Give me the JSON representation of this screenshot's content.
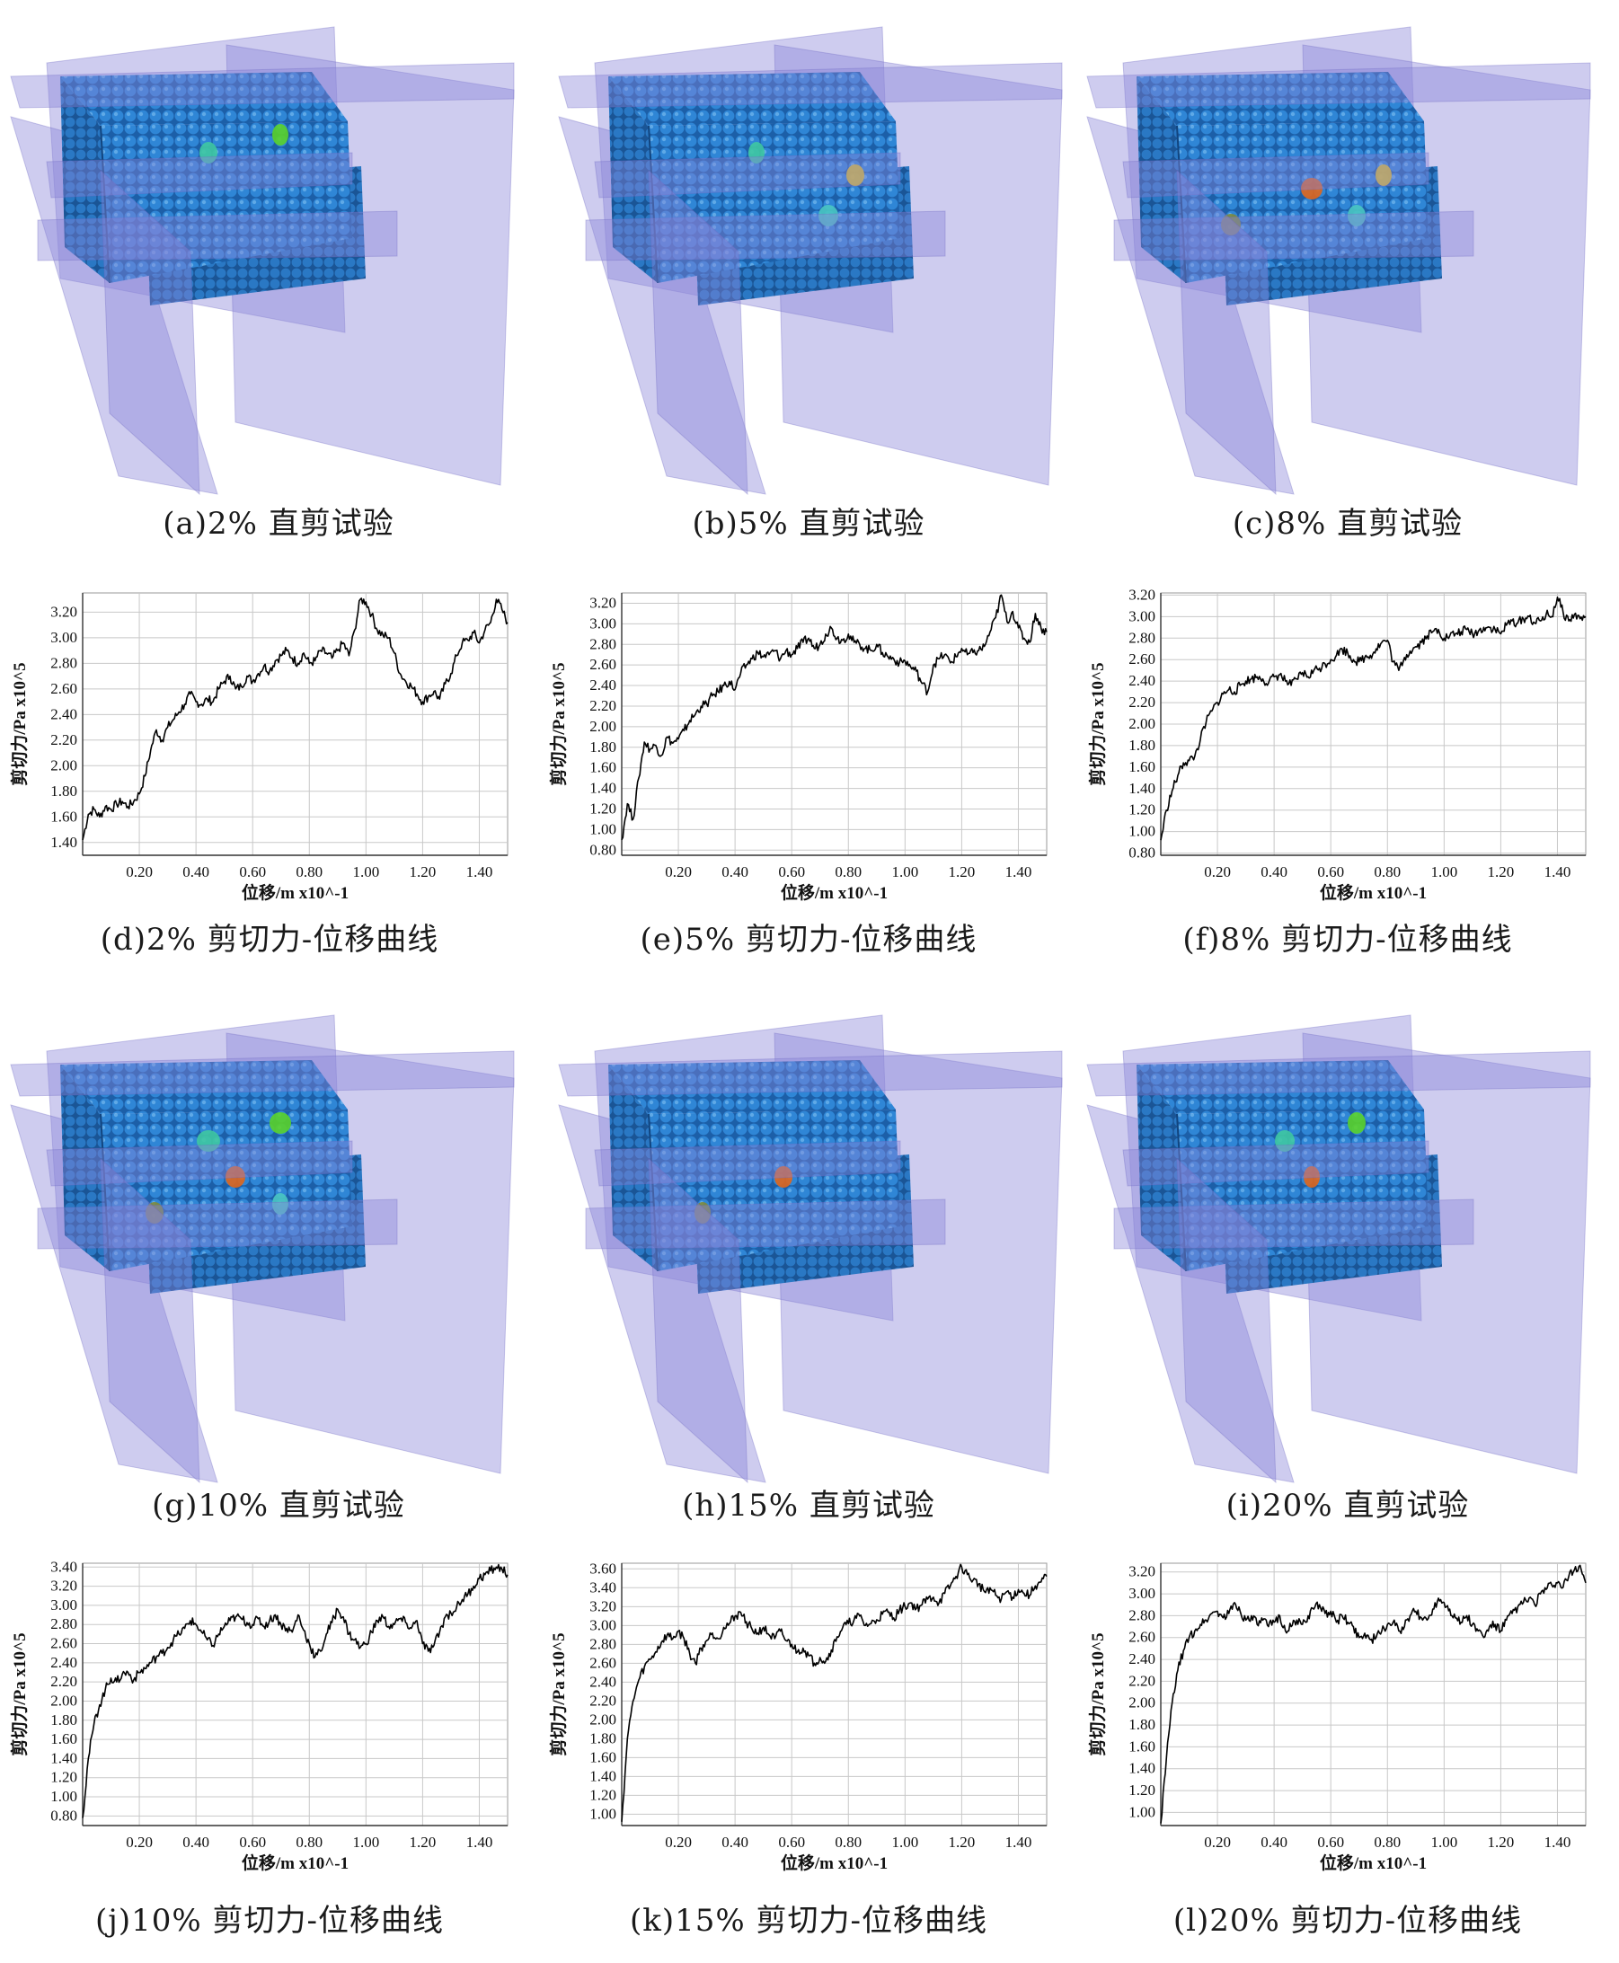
{
  "captions": {
    "a": "(a)2% 直剪试验",
    "b": "(b)5% 直剪试验",
    "c": "(c)8% 直剪试验",
    "d": "(d)2% 剪切力-位移曲线",
    "e": "(e)5% 剪切力-位移曲线",
    "f": "(f)8% 剪切力-位移曲线",
    "g": "(g)10% 直剪试验",
    "h": "(h)15% 直剪试验",
    "i": "(i)20% 直剪试验",
    "j": "(j)10% 剪切力-位移曲线",
    "k": "(k)15% 剪切力-位移曲线",
    "l": "(l)20% 剪切力-位移曲线"
  },
  "colors": {
    "plane": "#8a86d8",
    "particle_blue": "#2f86d6",
    "particle_dark": "#1c5fa8",
    "curve": "#000000",
    "grid": "#c8c8c8"
  },
  "chart_data": [
    {
      "id": "d",
      "type": "line",
      "xlabel": "位移/m x10^-1",
      "ylabel": "剪切力/Pa x10^5",
      "xlim": [
        0,
        1.5
      ],
      "ylim": [
        1.3,
        3.35
      ],
      "xticks": [
        "0.20",
        "0.40",
        "0.60",
        "0.80",
        "1.00",
        "1.20",
        "1.40"
      ],
      "yticks": [
        "1.40",
        "1.60",
        "1.80",
        "2.00",
        "2.20",
        "2.40",
        "2.60",
        "2.80",
        "3.00",
        "3.20"
      ],
      "grid": true,
      "x": [
        0,
        0.02,
        0.04,
        0.06,
        0.08,
        0.1,
        0.12,
        0.14,
        0.16,
        0.18,
        0.2,
        0.22,
        0.24,
        0.26,
        0.28,
        0.3,
        0.32,
        0.34,
        0.36,
        0.38,
        0.4,
        0.42,
        0.44,
        0.46,
        0.48,
        0.5,
        0.52,
        0.54,
        0.56,
        0.58,
        0.6,
        0.62,
        0.64,
        0.66,
        0.68,
        0.7,
        0.72,
        0.74,
        0.76,
        0.78,
        0.8,
        0.82,
        0.84,
        0.86,
        0.88,
        0.9,
        0.92,
        0.94,
        0.96,
        0.98,
        1.0,
        1.02,
        1.04,
        1.06,
        1.08,
        1.1,
        1.12,
        1.14,
        1.16,
        1.18,
        1.2,
        1.22,
        1.24,
        1.26,
        1.28,
        1.3,
        1.32,
        1.34,
        1.36,
        1.38,
        1.4,
        1.42,
        1.44,
        1.46,
        1.48,
        1.5
      ],
      "y": [
        1.42,
        1.62,
        1.66,
        1.6,
        1.68,
        1.66,
        1.7,
        1.72,
        1.68,
        1.72,
        1.78,
        1.92,
        2.12,
        2.28,
        2.2,
        2.3,
        2.36,
        2.42,
        2.48,
        2.56,
        2.5,
        2.48,
        2.52,
        2.5,
        2.6,
        2.66,
        2.7,
        2.6,
        2.62,
        2.7,
        2.66,
        2.72,
        2.78,
        2.74,
        2.82,
        2.86,
        2.9,
        2.84,
        2.8,
        2.88,
        2.8,
        2.82,
        2.9,
        2.88,
        2.84,
        2.9,
        2.96,
        2.86,
        3.06,
        3.3,
        3.28,
        3.18,
        3.06,
        3.02,
        3.0,
        2.88,
        2.72,
        2.66,
        2.62,
        2.56,
        2.5,
        2.54,
        2.58,
        2.52,
        2.64,
        2.72,
        2.86,
        2.96,
        2.98,
        3.04,
        2.96,
        3.06,
        3.12,
        3.3,
        3.22,
        3.12
      ]
    },
    {
      "id": "e",
      "type": "line",
      "xlabel": "位移/m x10^-1",
      "ylabel": "剪切力/Pa x10^5",
      "xlim": [
        0,
        1.5
      ],
      "ylim": [
        0.75,
        3.3
      ],
      "xticks": [
        "0.20",
        "0.40",
        "0.60",
        "0.80",
        "1.00",
        "1.20",
        "1.40"
      ],
      "yticks": [
        "0.80",
        "1.00",
        "1.20",
        "1.40",
        "1.60",
        "1.80",
        "2.00",
        "2.20",
        "2.40",
        "2.60",
        "2.80",
        "3.00",
        "3.20"
      ],
      "grid": true,
      "x": [
        0,
        0.02,
        0.04,
        0.06,
        0.08,
        0.1,
        0.12,
        0.14,
        0.16,
        0.18,
        0.2,
        0.22,
        0.24,
        0.26,
        0.28,
        0.3,
        0.32,
        0.34,
        0.36,
        0.38,
        0.4,
        0.42,
        0.44,
        0.46,
        0.48,
        0.5,
        0.52,
        0.54,
        0.56,
        0.58,
        0.6,
        0.62,
        0.64,
        0.66,
        0.68,
        0.7,
        0.72,
        0.74,
        0.76,
        0.78,
        0.8,
        0.82,
        0.84,
        0.86,
        0.88,
        0.9,
        0.92,
        0.94,
        0.96,
        0.98,
        1.0,
        1.02,
        1.04,
        1.06,
        1.08,
        1.1,
        1.12,
        1.14,
        1.16,
        1.18,
        1.2,
        1.22,
        1.24,
        1.26,
        1.28,
        1.3,
        1.32,
        1.34,
        1.36,
        1.38,
        1.4,
        1.42,
        1.44,
        1.46,
        1.48,
        1.5
      ],
      "y": [
        0.9,
        1.25,
        1.1,
        1.5,
        1.85,
        1.78,
        1.82,
        1.72,
        1.9,
        1.84,
        1.88,
        1.96,
        2.06,
        2.12,
        2.2,
        2.22,
        2.3,
        2.34,
        2.4,
        2.44,
        2.36,
        2.52,
        2.6,
        2.66,
        2.72,
        2.68,
        2.7,
        2.74,
        2.66,
        2.74,
        2.7,
        2.76,
        2.82,
        2.86,
        2.76,
        2.8,
        2.9,
        2.96,
        2.86,
        2.84,
        2.9,
        2.82,
        2.8,
        2.76,
        2.74,
        2.8,
        2.72,
        2.68,
        2.66,
        2.62,
        2.64,
        2.58,
        2.54,
        2.42,
        2.34,
        2.6,
        2.66,
        2.7,
        2.62,
        2.68,
        2.76,
        2.7,
        2.72,
        2.74,
        2.78,
        2.92,
        3.06,
        3.28,
        3.02,
        3.12,
        2.96,
        2.86,
        2.82,
        3.1,
        2.96,
        2.92
      ]
    },
    {
      "id": "f",
      "type": "line",
      "xlabel": "位移/m x10^-1",
      "ylabel": "剪切力/Pa x10^5",
      "xlim": [
        0,
        1.5
      ],
      "ylim": [
        0.78,
        3.22
      ],
      "xticks": [
        "0.20",
        "0.40",
        "0.60",
        "0.80",
        "1.00",
        "1.20",
        "1.40"
      ],
      "yticks": [
        "0.80",
        "1.00",
        "1.20",
        "1.40",
        "1.60",
        "1.80",
        "2.00",
        "2.20",
        "2.40",
        "2.60",
        "2.80",
        "3.00",
        "3.20"
      ],
      "grid": true,
      "x": [
        0,
        0.02,
        0.04,
        0.06,
        0.08,
        0.1,
        0.12,
        0.14,
        0.16,
        0.18,
        0.2,
        0.22,
        0.24,
        0.26,
        0.28,
        0.3,
        0.32,
        0.34,
        0.36,
        0.38,
        0.4,
        0.42,
        0.44,
        0.46,
        0.48,
        0.5,
        0.52,
        0.54,
        0.56,
        0.58,
        0.6,
        0.62,
        0.64,
        0.66,
        0.68,
        0.7,
        0.72,
        0.74,
        0.76,
        0.78,
        0.8,
        0.82,
        0.84,
        0.86,
        0.88,
        0.9,
        0.92,
        0.94,
        0.96,
        0.98,
        1.0,
        1.02,
        1.04,
        1.06,
        1.08,
        1.1,
        1.12,
        1.14,
        1.16,
        1.18,
        1.2,
        1.22,
        1.24,
        1.26,
        1.28,
        1.3,
        1.32,
        1.34,
        1.36,
        1.38,
        1.4,
        1.42,
        1.44,
        1.46,
        1.48,
        1.5
      ],
      "y": [
        0.92,
        1.2,
        1.38,
        1.52,
        1.64,
        1.66,
        1.7,
        1.86,
        2.02,
        2.12,
        2.2,
        2.28,
        2.32,
        2.3,
        2.36,
        2.4,
        2.42,
        2.44,
        2.42,
        2.38,
        2.44,
        2.46,
        2.4,
        2.36,
        2.42,
        2.48,
        2.44,
        2.5,
        2.52,
        2.56,
        2.6,
        2.64,
        2.7,
        2.66,
        2.6,
        2.58,
        2.62,
        2.64,
        2.7,
        2.76,
        2.78,
        2.58,
        2.5,
        2.62,
        2.68,
        2.72,
        2.76,
        2.82,
        2.86,
        2.88,
        2.8,
        2.82,
        2.84,
        2.86,
        2.88,
        2.84,
        2.86,
        2.9,
        2.9,
        2.88,
        2.84,
        2.92,
        2.96,
        2.94,
        2.98,
        3.0,
        2.94,
        2.96,
        3.02,
        3.0,
        3.18,
        3.04,
        2.96,
        3.02,
        2.98,
        3.0
      ]
    },
    {
      "id": "j",
      "type": "line",
      "xlabel": "位移/m x10^-1",
      "ylabel": "剪切力/Pa x10^5",
      "xlim": [
        0,
        1.5
      ],
      "ylim": [
        0.7,
        3.44
      ],
      "xticks": [
        "0.20",
        "0.40",
        "0.60",
        "0.80",
        "1.00",
        "1.20",
        "1.40"
      ],
      "yticks": [
        "0.80",
        "1.00",
        "1.20",
        "1.40",
        "1.60",
        "1.80",
        "2.00",
        "2.20",
        "2.40",
        "2.60",
        "2.80",
        "3.00",
        "3.20",
        "3.40"
      ],
      "grid": true,
      "x": [
        0,
        0.02,
        0.04,
        0.06,
        0.08,
        0.1,
        0.12,
        0.14,
        0.16,
        0.18,
        0.2,
        0.22,
        0.24,
        0.26,
        0.28,
        0.3,
        0.32,
        0.34,
        0.36,
        0.38,
        0.4,
        0.42,
        0.44,
        0.46,
        0.48,
        0.5,
        0.52,
        0.54,
        0.56,
        0.58,
        0.6,
        0.62,
        0.64,
        0.66,
        0.68,
        0.7,
        0.72,
        0.74,
        0.76,
        0.78,
        0.8,
        0.82,
        0.84,
        0.86,
        0.88,
        0.9,
        0.92,
        0.94,
        0.96,
        0.98,
        1.0,
        1.02,
        1.04,
        1.06,
        1.08,
        1.1,
        1.12,
        1.14,
        1.16,
        1.18,
        1.2,
        1.22,
        1.24,
        1.26,
        1.28,
        1.3,
        1.32,
        1.34,
        1.36,
        1.38,
        1.4,
        1.42,
        1.44,
        1.46,
        1.48,
        1.5
      ],
      "y": [
        0.78,
        1.4,
        1.76,
        1.96,
        2.12,
        2.24,
        2.2,
        2.28,
        2.3,
        2.22,
        2.3,
        2.34,
        2.4,
        2.46,
        2.5,
        2.56,
        2.64,
        2.7,
        2.76,
        2.84,
        2.8,
        2.72,
        2.64,
        2.58,
        2.7,
        2.78,
        2.84,
        2.88,
        2.86,
        2.82,
        2.8,
        2.86,
        2.78,
        2.84,
        2.9,
        2.8,
        2.76,
        2.72,
        2.9,
        2.74,
        2.6,
        2.46,
        2.52,
        2.7,
        2.82,
        2.96,
        2.88,
        2.7,
        2.64,
        2.56,
        2.6,
        2.72,
        2.84,
        2.88,
        2.78,
        2.8,
        2.86,
        2.82,
        2.76,
        2.84,
        2.6,
        2.52,
        2.58,
        2.72,
        2.88,
        2.92,
        2.98,
        3.06,
        3.12,
        3.2,
        3.28,
        3.32,
        3.36,
        3.4,
        3.38,
        3.32
      ]
    },
    {
      "id": "k",
      "type": "line",
      "xlabel": "位移/m x10^-1",
      "ylabel": "剪切力/Pa x10^5",
      "xlim": [
        0,
        1.5
      ],
      "ylim": [
        0.88,
        3.66
      ],
      "xticks": [
        "0.20",
        "0.40",
        "0.60",
        "0.80",
        "1.00",
        "1.20",
        "1.40"
      ],
      "yticks": [
        "1.00",
        "1.20",
        "1.40",
        "1.60",
        "1.80",
        "2.00",
        "2.20",
        "2.40",
        "2.60",
        "2.80",
        "3.00",
        "3.20",
        "3.40",
        "3.60"
      ],
      "grid": true,
      "x": [
        0,
        0.02,
        0.04,
        0.06,
        0.08,
        0.1,
        0.12,
        0.14,
        0.16,
        0.18,
        0.2,
        0.22,
        0.24,
        0.26,
        0.28,
        0.3,
        0.32,
        0.34,
        0.36,
        0.38,
        0.4,
        0.42,
        0.44,
        0.46,
        0.48,
        0.5,
        0.52,
        0.54,
        0.56,
        0.58,
        0.6,
        0.62,
        0.64,
        0.66,
        0.68,
        0.7,
        0.72,
        0.74,
        0.76,
        0.78,
        0.8,
        0.82,
        0.84,
        0.86,
        0.88,
        0.9,
        0.92,
        0.94,
        0.96,
        0.98,
        1.0,
        1.02,
        1.04,
        1.06,
        1.08,
        1.1,
        1.12,
        1.14,
        1.16,
        1.18,
        1.2,
        1.22,
        1.24,
        1.26,
        1.28,
        1.3,
        1.32,
        1.34,
        1.36,
        1.38,
        1.4,
        1.42,
        1.44,
        1.46,
        1.48,
        1.5
      ],
      "y": [
        0.92,
        1.8,
        2.2,
        2.42,
        2.56,
        2.64,
        2.72,
        2.82,
        2.9,
        2.86,
        2.94,
        2.86,
        2.7,
        2.6,
        2.76,
        2.84,
        2.92,
        2.86,
        2.98,
        3.02,
        3.1,
        3.14,
        3.04,
        2.96,
        2.92,
        2.98,
        2.9,
        2.86,
        2.94,
        2.84,
        2.8,
        2.72,
        2.76,
        2.68,
        2.6,
        2.66,
        2.62,
        2.74,
        2.88,
        2.98,
        3.02,
        3.06,
        3.1,
        3.0,
        3.02,
        3.06,
        3.12,
        3.14,
        3.08,
        3.16,
        3.2,
        3.24,
        3.18,
        3.22,
        3.28,
        3.3,
        3.24,
        3.34,
        3.42,
        3.52,
        3.62,
        3.54,
        3.48,
        3.44,
        3.36,
        3.4,
        3.32,
        3.28,
        3.36,
        3.3,
        3.38,
        3.34,
        3.32,
        3.42,
        3.46,
        3.52
      ]
    },
    {
      "id": "l",
      "type": "line",
      "xlabel": "位移/m x10^-1",
      "ylabel": "剪切力/Pa x10^5",
      "xlim": [
        0,
        1.5
      ],
      "ylim": [
        0.88,
        3.28
      ],
      "xticks": [
        "0.20",
        "0.40",
        "0.60",
        "0.80",
        "1.00",
        "1.20",
        "1.40"
      ],
      "yticks": [
        "1.00",
        "1.20",
        "1.40",
        "1.60",
        "1.80",
        "2.00",
        "2.20",
        "2.40",
        "2.60",
        "2.80",
        "3.00",
        "3.20"
      ],
      "grid": true,
      "x": [
        0,
        0.02,
        0.04,
        0.06,
        0.08,
        0.1,
        0.12,
        0.14,
        0.16,
        0.18,
        0.2,
        0.22,
        0.24,
        0.26,
        0.28,
        0.3,
        0.32,
        0.34,
        0.36,
        0.38,
        0.4,
        0.42,
        0.44,
        0.46,
        0.48,
        0.5,
        0.52,
        0.54,
        0.56,
        0.58,
        0.6,
        0.62,
        0.64,
        0.66,
        0.68,
        0.7,
        0.72,
        0.74,
        0.76,
        0.78,
        0.8,
        0.82,
        0.84,
        0.86,
        0.88,
        0.9,
        0.92,
        0.94,
        0.96,
        0.98,
        1.0,
        1.02,
        1.04,
        1.06,
        1.08,
        1.1,
        1.12,
        1.14,
        1.16,
        1.18,
        1.2,
        1.22,
        1.24,
        1.26,
        1.28,
        1.3,
        1.32,
        1.34,
        1.36,
        1.38,
        1.4,
        1.42,
        1.44,
        1.46,
        1.48,
        1.5
      ],
      "y": [
        0.9,
        1.5,
        2.0,
        2.3,
        2.48,
        2.6,
        2.66,
        2.72,
        2.76,
        2.82,
        2.84,
        2.78,
        2.82,
        2.92,
        2.84,
        2.76,
        2.8,
        2.72,
        2.76,
        2.7,
        2.74,
        2.8,
        2.66,
        2.7,
        2.76,
        2.72,
        2.8,
        2.86,
        2.9,
        2.82,
        2.84,
        2.74,
        2.8,
        2.74,
        2.7,
        2.6,
        2.64,
        2.58,
        2.6,
        2.66,
        2.72,
        2.74,
        2.66,
        2.7,
        2.8,
        2.84,
        2.78,
        2.76,
        2.86,
        2.96,
        2.92,
        2.86,
        2.78,
        2.74,
        2.8,
        2.72,
        2.66,
        2.6,
        2.7,
        2.72,
        2.66,
        2.76,
        2.82,
        2.88,
        2.92,
        2.96,
        2.9,
        3.0,
        3.04,
        3.08,
        3.1,
        3.06,
        3.16,
        3.22,
        3.26,
        3.1
      ]
    }
  ]
}
